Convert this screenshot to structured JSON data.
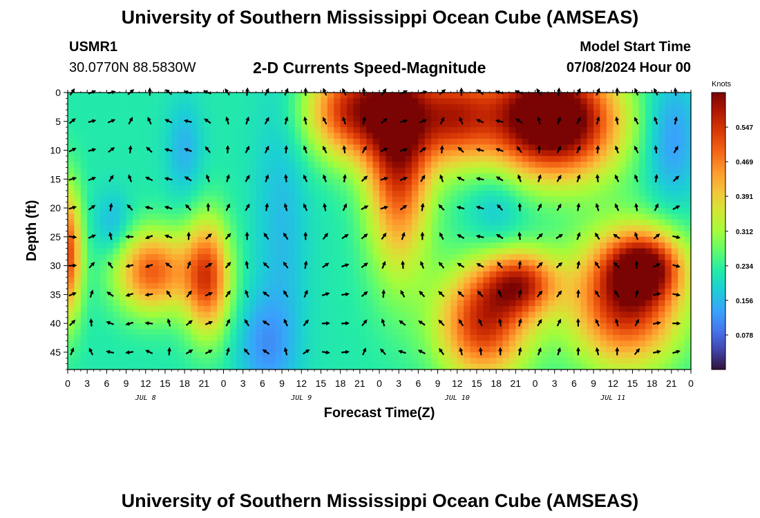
{
  "header": {
    "title": "University of Southern Mississippi Ocean Cube (AMSEAS)",
    "station_id": "USMR1",
    "coordinates": "30.0770N  88.5830W",
    "plot_name": "2-D Currents Speed-Magnitude",
    "model_start_label": "Model Start Time",
    "model_start_value": "07/08/2024 Hour 00"
  },
  "footer": {
    "title": "University of Southern Mississippi Ocean Cube (AMSEAS)"
  },
  "chart_data": {
    "type": "heatmap",
    "title": "2-D Currents Speed-Magnitude",
    "xlabel": "Forecast Time(Z)",
    "ylabel": "Depth (ft)",
    "x_ticks": [
      "0",
      "3",
      "6",
      "9",
      "12",
      "15",
      "18",
      "21",
      "0",
      "3",
      "6",
      "9",
      "12",
      "15",
      "18",
      "21",
      "0",
      "3",
      "6",
      "9",
      "12",
      "15",
      "18",
      "21",
      "0",
      "3",
      "6",
      "9",
      "12",
      "15",
      "18",
      "21",
      "0"
    ],
    "x_range_hours": [
      0,
      96
    ],
    "date_labels": [
      {
        "label": "JUL 8",
        "hour": 12
      },
      {
        "label": "JUL 9",
        "hour": 36
      },
      {
        "label": "JUL 10",
        "hour": 60
      },
      {
        "label": "JUL 11",
        "hour": 84
      }
    ],
    "y_ticks": [
      "0",
      "5",
      "10",
      "15",
      "20",
      "25",
      "30",
      "35",
      "40",
      "45"
    ],
    "y_range_ft": [
      0,
      48
    ],
    "colorbar": {
      "unit": "Knots",
      "range": [
        0,
        0.625
      ],
      "tick_labels": [
        "0.547",
        "0.469",
        "0.391",
        "0.312",
        "0.234",
        "0.156",
        "0.078"
      ],
      "tick_values": [
        0.547,
        0.469,
        0.391,
        0.312,
        0.234,
        0.156,
        0.078
      ]
    },
    "arrow_depths_ft": [
      0,
      5,
      10,
      15,
      20,
      25,
      30,
      35,
      40,
      45
    ],
    "arrow_hours": [
      0,
      3,
      6,
      9,
      12,
      15,
      18,
      21,
      24,
      27,
      30,
      33,
      36,
      39,
      42,
      45,
      48,
      51,
      54,
      57,
      60,
      63,
      66,
      69,
      72,
      75,
      78,
      81,
      84,
      87,
      90,
      93
    ],
    "speed_hotspots_knots": [
      {
        "hour": 0,
        "depth": 28,
        "speed": 0.52,
        "sh": 1.5,
        "sd": 8
      },
      {
        "hour": 13,
        "depth": 31,
        "speed": 0.5,
        "sh": 4,
        "sd": 5
      },
      {
        "hour": 21.5,
        "depth": 32,
        "speed": 0.52,
        "sh": 2.5,
        "sd": 7
      },
      {
        "hour": 44,
        "depth": 3,
        "speed": 0.56,
        "sh": 5,
        "sd": 6
      },
      {
        "hour": 51,
        "depth": 10,
        "speed": 0.56,
        "sh": 3.5,
        "sd": 14
      },
      {
        "hour": 59,
        "depth": 4,
        "speed": 0.52,
        "sh": 4.5,
        "sd": 6
      },
      {
        "hour": 71,
        "depth": 4,
        "speed": 0.54,
        "sh": 6,
        "sd": 7
      },
      {
        "hour": 78,
        "depth": 5,
        "speed": 0.52,
        "sh": 6,
        "sd": 7
      },
      {
        "hour": 64,
        "depth": 40,
        "speed": 0.55,
        "sh": 5,
        "sd": 7
      },
      {
        "hour": 70,
        "depth": 33,
        "speed": 0.5,
        "sh": 4,
        "sd": 4
      },
      {
        "hour": 86,
        "depth": 36,
        "speed": 0.58,
        "sh": 6,
        "sd": 8
      },
      {
        "hour": 89,
        "depth": 30,
        "speed": 0.48,
        "sh": 4,
        "sd": 4
      },
      {
        "hour": 33,
        "depth": 25,
        "speed": 0.16,
        "sh": 3,
        "sd": 22
      },
      {
        "hour": 30,
        "depth": 44,
        "speed": 0.14,
        "sh": 3,
        "sd": 6
      },
      {
        "hour": 93,
        "depth": 8,
        "speed": 0.12,
        "sh": 3,
        "sd": 8
      },
      {
        "hour": 18,
        "depth": 10,
        "speed": 0.15,
        "sh": 2,
        "sd": 6
      },
      {
        "hour": 66,
        "depth": 20,
        "speed": 0.16,
        "sh": 3,
        "sd": 5
      },
      {
        "hour": 7,
        "depth": 23,
        "speed": 0.15,
        "sh": 2,
        "sd": 4
      }
    ],
    "background_speed_knots": 0.22
  }
}
